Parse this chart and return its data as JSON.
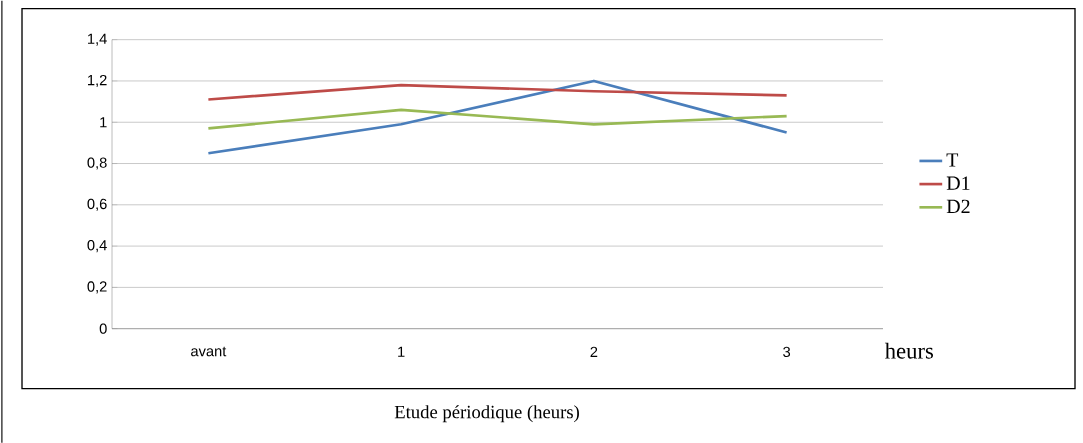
{
  "chart_data": {
    "type": "line",
    "xlabel": "Etude périodique (heurs)",
    "annotations": [
      "heurs"
    ],
    "categories": [
      "avant",
      "1",
      "2",
      "3"
    ],
    "series": [
      {
        "name": "T",
        "color": "#4a7ebb",
        "values": [
          0.85,
          0.99,
          1.2,
          0.95
        ]
      },
      {
        "name": "D1",
        "color": "#be4b48",
        "values": [
          1.11,
          1.18,
          1.15,
          1.13
        ]
      },
      {
        "name": "D2",
        "color": "#98b954",
        "values": [
          0.97,
          1.06,
          0.99,
          1.03
        ]
      }
    ],
    "ylim": [
      0,
      1.4
    ],
    "yticks": [
      0,
      {
        "value": 0.2,
        "label": "0,2"
      },
      {
        "value": 0.4,
        "label": "0,4"
      },
      {
        "value": 0.6,
        "label": "0,6"
      },
      {
        "value": 0.8,
        "label": "0,8"
      },
      1,
      {
        "value": 1.2,
        "label": "1,2"
      },
      {
        "value": 1.4,
        "label": "1,4"
      }
    ],
    "grid": "y",
    "legend": "right",
    "marker": "none",
    "line_style": "solid"
  }
}
